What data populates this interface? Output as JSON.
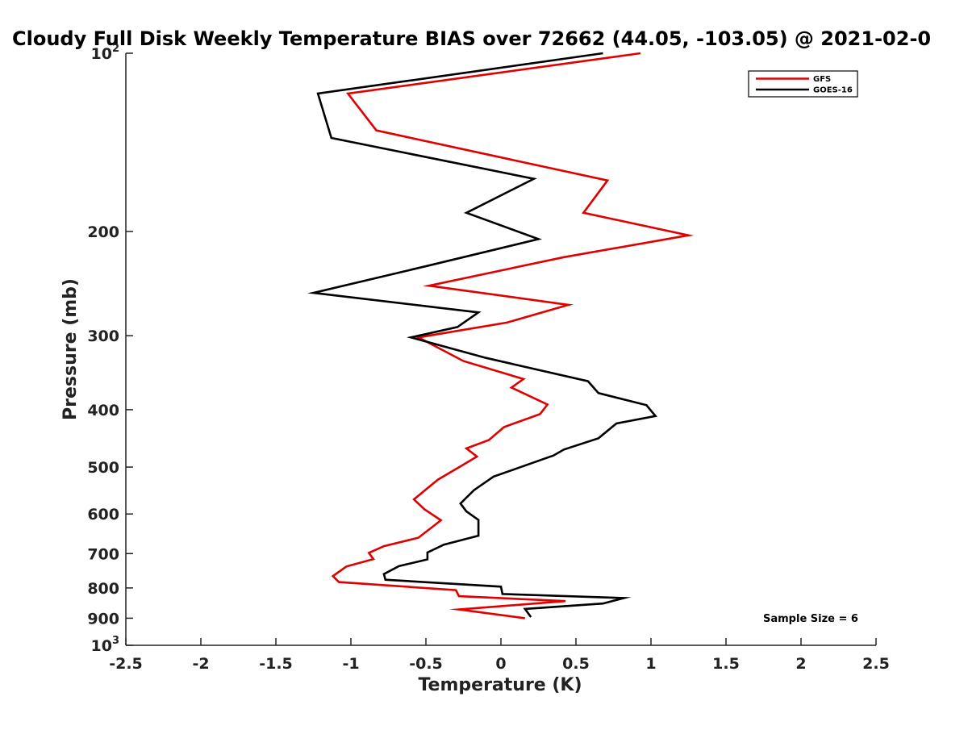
{
  "chart_data": {
    "type": "line",
    "title": "Cloudy Full Disk Weekly Temperature BIAS over 72662 (44.05, -103.05) @ 2021-02-0",
    "xlabel": "Temperature (K)",
    "ylabel": "Pressure (mb)",
    "xlim": [
      -2.5,
      2.5
    ],
    "ylim": [
      100,
      1000
    ],
    "y_scale": "log",
    "y_reversed": true,
    "grid": false,
    "legend_position": "top-right",
    "x_ticks": [
      "-2.5",
      "-2",
      "-1.5",
      "-1",
      "-0.5",
      "0",
      "0.5",
      "1",
      "1.5",
      "2",
      "2.5"
    ],
    "x_tick_values": [
      -2.5,
      -2,
      -1.5,
      -1,
      -0.5,
      0,
      0.5,
      1,
      1.5,
      2,
      2.5
    ],
    "y_ticks": [
      {
        "value": 100,
        "base": "10",
        "exp": "2"
      },
      {
        "value": 200,
        "label": "200"
      },
      {
        "value": 300,
        "label": "300"
      },
      {
        "value": 400,
        "label": "400"
      },
      {
        "value": 500,
        "label": "500"
      },
      {
        "value": 600,
        "label": "600"
      },
      {
        "value": 700,
        "label": "700"
      },
      {
        "value": 800,
        "label": "800"
      },
      {
        "value": 900,
        "label": "900"
      },
      {
        "value": 1000,
        "base": "10",
        "exp": "3"
      }
    ],
    "series": [
      {
        "name": "GFS",
        "color": "#e00000",
        "points": [
          [
            0.93,
            100
          ],
          [
            -1.02,
            117
          ],
          [
            -0.83,
            135
          ],
          [
            0.71,
            164
          ],
          [
            0.55,
            186
          ],
          [
            1.25,
            203
          ],
          [
            0.42,
            221
          ],
          [
            -0.48,
            247
          ],
          [
            0.45,
            266
          ],
          [
            0.04,
            285
          ],
          [
            -0.55,
            302
          ],
          [
            -0.25,
            331
          ],
          [
            0.15,
            355
          ],
          [
            0.07,
            367
          ],
          [
            0.31,
            392
          ],
          [
            0.26,
            407
          ],
          [
            0.02,
            428
          ],
          [
            -0.08,
            450
          ],
          [
            -0.23,
            465
          ],
          [
            -0.16,
            480
          ],
          [
            -0.26,
            497
          ],
          [
            -0.42,
            525
          ],
          [
            -0.58,
            567
          ],
          [
            -0.51,
            589
          ],
          [
            -0.4,
            615
          ],
          [
            -0.55,
            658
          ],
          [
            -0.78,
            680
          ],
          [
            -0.88,
            698
          ],
          [
            -0.85,
            715
          ],
          [
            -1.03,
            736
          ],
          [
            -1.12,
            764
          ],
          [
            -1.08,
            782
          ],
          [
            -0.3,
            807
          ],
          [
            -0.28,
            826
          ],
          [
            0.43,
            842
          ],
          [
            -0.28,
            870
          ],
          [
            0.16,
            900
          ]
        ]
      },
      {
        "name": "GOES-16",
        "color": "#000000",
        "points": [
          [
            0.68,
            100
          ],
          [
            -1.22,
            117
          ],
          [
            -1.13,
            139
          ],
          [
            0.22,
            163
          ],
          [
            -0.23,
            186
          ],
          [
            0.25,
            206
          ],
          [
            -0.47,
            228
          ],
          [
            -1.25,
            254
          ],
          [
            -0.15,
            274
          ],
          [
            -0.29,
            290
          ],
          [
            -0.6,
            302
          ],
          [
            -0.1,
            327
          ],
          [
            0.58,
            358
          ],
          [
            0.65,
            375
          ],
          [
            0.97,
            393
          ],
          [
            1.03,
            410
          ],
          [
            0.77,
            422
          ],
          [
            0.65,
            447
          ],
          [
            0.42,
            467
          ],
          [
            0.35,
            478
          ],
          [
            0.15,
            498
          ],
          [
            -0.05,
            519
          ],
          [
            -0.18,
            547
          ],
          [
            -0.27,
            576
          ],
          [
            -0.23,
            594
          ],
          [
            -0.15,
            614
          ],
          [
            -0.15,
            653
          ],
          [
            -0.38,
            676
          ],
          [
            -0.49,
            697
          ],
          [
            -0.49,
            716
          ],
          [
            -0.68,
            735
          ],
          [
            -0.78,
            758
          ],
          [
            -0.77,
            775
          ],
          [
            0,
            796
          ],
          [
            0.01,
            819
          ],
          [
            0.82,
            832
          ],
          [
            0.68,
            850
          ],
          [
            0.16,
            868
          ],
          [
            0.2,
            896
          ]
        ]
      }
    ],
    "annotation": "Sample Size = 6"
  }
}
